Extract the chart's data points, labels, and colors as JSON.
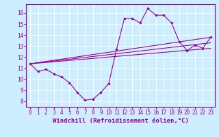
{
  "background_color": "#cceeff",
  "line_color": "#990099",
  "grid_color": "#ffffff",
  "xlabel": "Windchill (Refroidissement éolien,°C)",
  "xlabel_fontsize": 6.5,
  "tick_fontsize": 5.5,
  "xlim": [
    -0.5,
    23.5
  ],
  "ylim": [
    7.5,
    16.8
  ],
  "yticks": [
    8,
    9,
    10,
    11,
    12,
    13,
    14,
    15,
    16
  ],
  "xticks": [
    0,
    1,
    2,
    3,
    4,
    5,
    6,
    7,
    8,
    9,
    10,
    11,
    12,
    13,
    14,
    15,
    16,
    17,
    18,
    19,
    20,
    21,
    22,
    23
  ],
  "main_series": {
    "x": [
      0,
      1,
      2,
      3,
      4,
      5,
      6,
      7,
      8,
      9,
      10,
      11,
      12,
      13,
      14,
      15,
      16,
      17,
      18,
      19,
      20,
      21,
      22,
      23
    ],
    "y": [
      11.4,
      10.7,
      10.9,
      10.5,
      10.2,
      9.7,
      8.8,
      8.1,
      8.2,
      8.8,
      9.6,
      12.7,
      15.5,
      15.5,
      15.1,
      16.4,
      15.8,
      15.8,
      15.1,
      13.4,
      12.6,
      13.1,
      12.8,
      13.8
    ]
  },
  "trend_lines": [
    {
      "x": [
        0,
        23
      ],
      "y": [
        11.4,
        13.8
      ]
    },
    {
      "x": [
        0,
        23
      ],
      "y": [
        11.4,
        12.8
      ]
    },
    {
      "x": [
        0,
        23
      ],
      "y": [
        11.4,
        13.3
      ]
    }
  ]
}
